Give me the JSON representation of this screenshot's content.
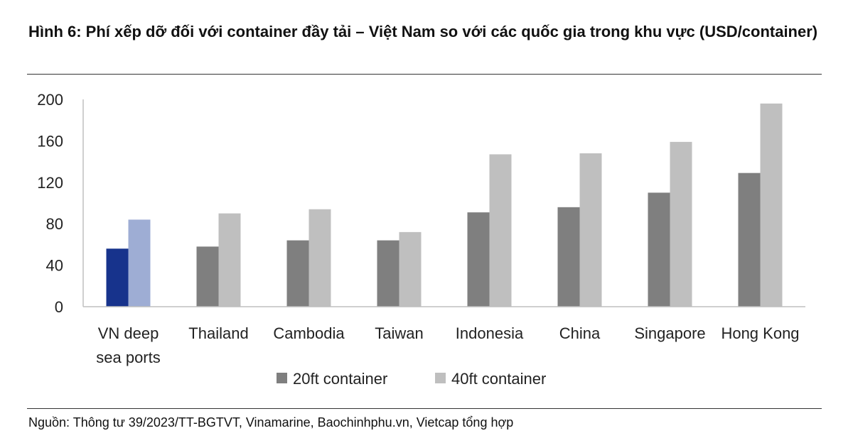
{
  "title": "Hình 6: Phí xếp dỡ đối với container đầy tải – Việt Nam so với các quốc gia trong khu vực (USD/container)",
  "source": "Nguồn: Thông tư 39/2023/TT-BGTVT, Vinamarine, Baochinhphu.vn, Vietcap tổng hợp",
  "chart_data": {
    "type": "bar",
    "categories": [
      [
        "VN deep",
        "sea ports"
      ],
      [
        "Thailand"
      ],
      [
        "Cambodia"
      ],
      [
        "Taiwan"
      ],
      [
        "Indonesia"
      ],
      [
        "China"
      ],
      [
        "Singapore"
      ],
      [
        "Hong Kong"
      ]
    ],
    "series": [
      {
        "name": "20ft container",
        "values": [
          56,
          58,
          64,
          64,
          91,
          96,
          110,
          129
        ]
      },
      {
        "name": "40ft container",
        "values": [
          84,
          90,
          94,
          72,
          147,
          148,
          159,
          196
        ]
      }
    ],
    "ylim": [
      0,
      200
    ],
    "yticks": [
      0,
      40,
      80,
      120,
      160,
      200
    ],
    "legend": "bottom",
    "grid": false,
    "colors": {
      "series": [
        "#7f7f7f",
        "#bfbfbf"
      ],
      "highlight": [
        "#17338c",
        "#9eadd4"
      ],
      "axis": "#bfbfbf"
    }
  }
}
